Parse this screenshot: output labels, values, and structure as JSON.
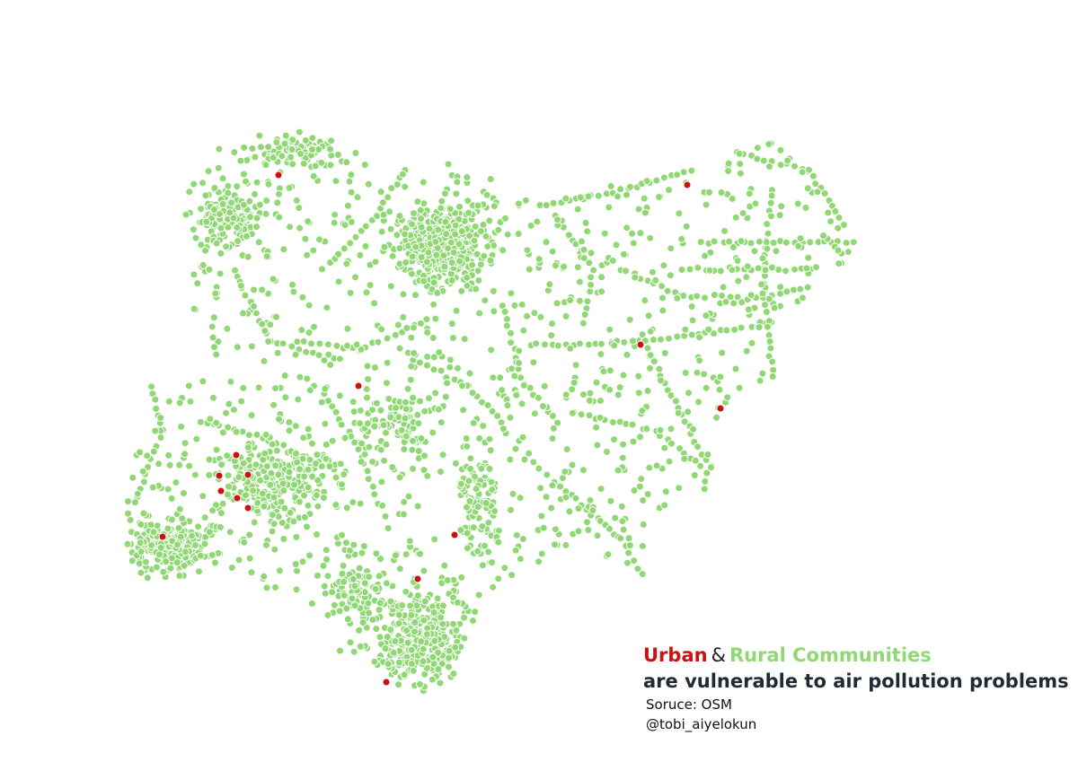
{
  "title": {
    "urban": "Urban",
    "amp": "&",
    "rural": "Rural Communities",
    "line2": "are vulnerable to air pollution problems"
  },
  "source": "Soruce: OSM",
  "credit": "@tobi_aiyelokun",
  "colors": {
    "urban": "#cc1111",
    "rural": "#8fd873",
    "dot_outline": "#ffffff"
  }
}
